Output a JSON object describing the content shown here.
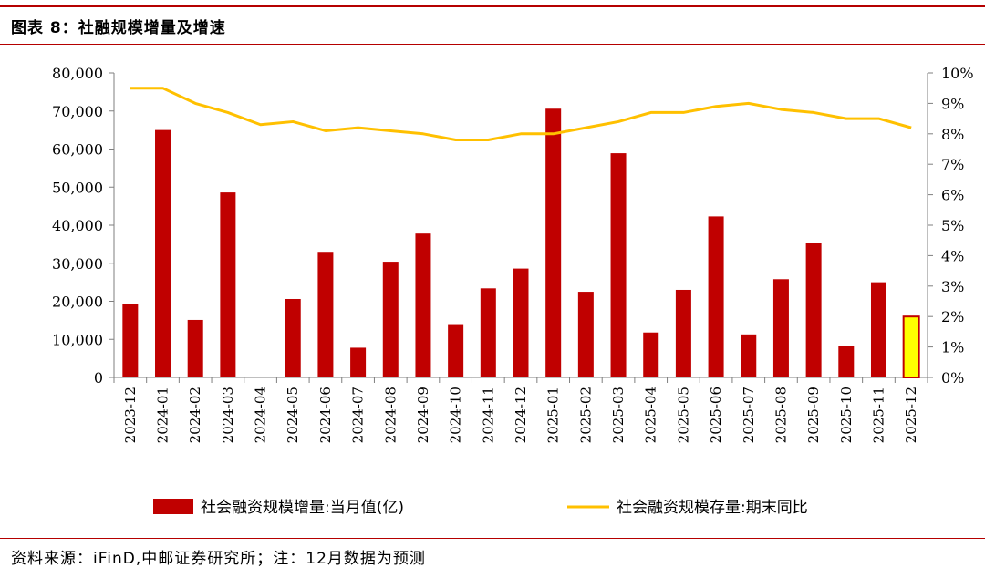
{
  "figure": {
    "title": "图表 8：社融规模增量及增速",
    "source": "资料来源：iFinD,中邮证券研究所；注：12月数据为预测"
  },
  "chart_data": {
    "type": "bar",
    "categories": [
      "2023-12",
      "2024-01",
      "2024-02",
      "2024-03",
      "2024-04",
      "2024-05",
      "2024-06",
      "2024-07",
      "2024-08",
      "2024-09",
      "2024-10",
      "2024-11",
      "2024-12",
      "2025-01",
      "2025-02",
      "2025-03",
      "2025-04",
      "2025-05",
      "2025-06",
      "2025-07",
      "2025-08",
      "2025-09",
      "2025-10",
      "2025-11",
      "2025-12"
    ],
    "series": [
      {
        "name": "社会融资规模增量:当月值(亿)",
        "type": "bar",
        "axis": "left",
        "color": "#c00000",
        "forecast_color": "#ffff00",
        "values": [
          19400,
          65000,
          15100,
          48600,
          0,
          20600,
          33000,
          7800,
          30400,
          37800,
          14000,
          23400,
          28600,
          70600,
          22500,
          58900,
          11800,
          23000,
          42300,
          11300,
          25800,
          35300,
          8200,
          25000,
          16000
        ]
      },
      {
        "name": "社会融资规模存量:期末同比",
        "type": "line",
        "axis": "right",
        "color": "#ffc000",
        "values": [
          9.5,
          9.5,
          9.0,
          8.7,
          8.3,
          8.4,
          8.1,
          8.2,
          8.1,
          8.0,
          7.8,
          7.8,
          8.0,
          8.0,
          8.2,
          8.4,
          8.7,
          8.7,
          8.9,
          9.0,
          8.8,
          8.7,
          8.5,
          8.5,
          8.2
        ]
      }
    ],
    "forecast_index": 24,
    "y_left": {
      "ylim": [
        0,
        80000
      ],
      "ticks": [
        0,
        10000,
        20000,
        30000,
        40000,
        50000,
        60000,
        70000,
        80000
      ],
      "tick_labels": [
        "0",
        "10,000",
        "20,000",
        "30,000",
        "40,000",
        "50,000",
        "60,000",
        "70,000",
        "80,000"
      ]
    },
    "y_right": {
      "ylim": [
        0,
        10
      ],
      "ticks": [
        0,
        1,
        2,
        3,
        4,
        5,
        6,
        7,
        8,
        9,
        10
      ],
      "tick_labels": [
        "0%",
        "1%",
        "2%",
        "3%",
        "4%",
        "5%",
        "6%",
        "7%",
        "8%",
        "9%",
        "10%"
      ]
    },
    "grid": false,
    "legend": "bottom"
  }
}
